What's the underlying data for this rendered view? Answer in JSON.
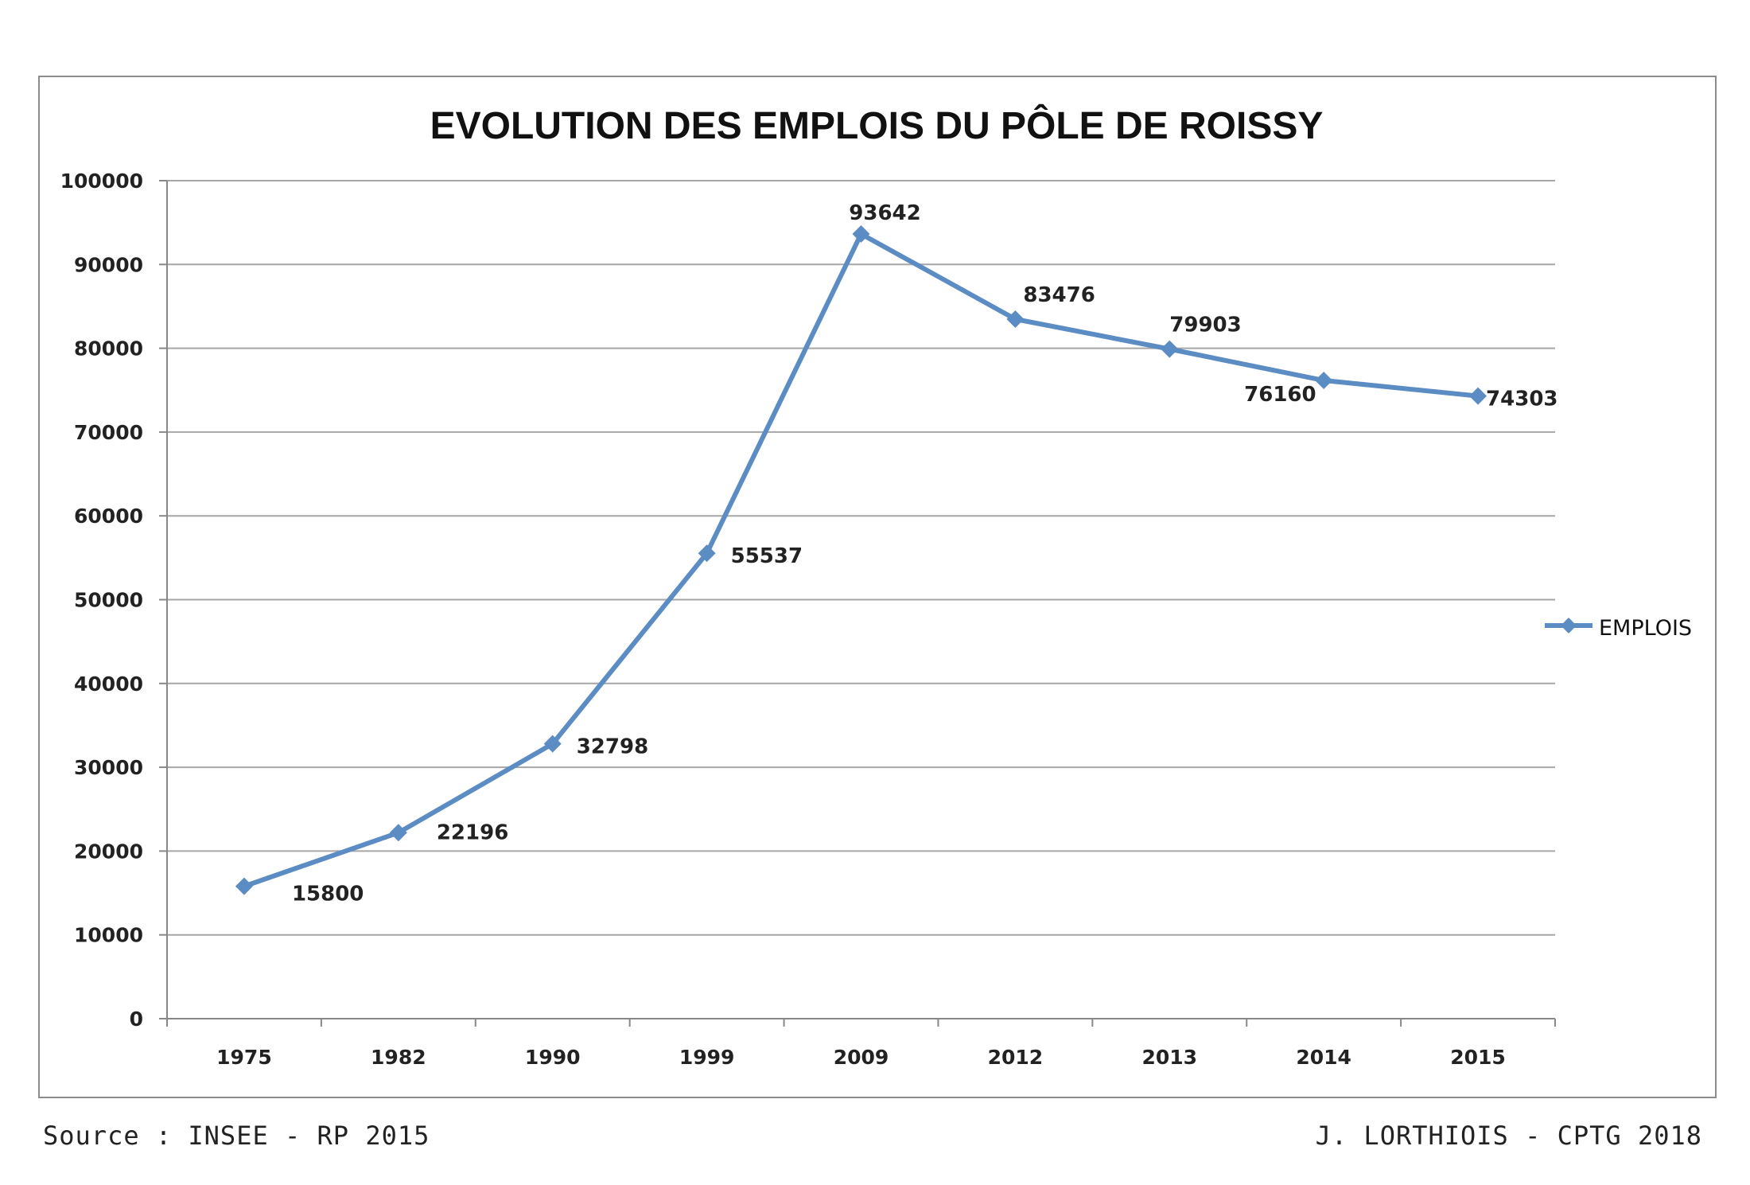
{
  "chart_data": {
    "type": "line",
    "title": "EVOLUTION DES EMPLOIS DU PÔLE DE ROISSY",
    "xlabel": "",
    "ylabel": "",
    "categories": [
      "1975",
      "1982",
      "1990",
      "1999",
      "2009",
      "2012",
      "2013",
      "2014",
      "2015"
    ],
    "series": [
      {
        "name": "EMPLOIS",
        "values": [
          15800,
          22196,
          32798,
          55537,
          93642,
          83476,
          79903,
          76160,
          74303
        ]
      }
    ],
    "ylim": [
      0,
      100000
    ],
    "yticks": [
      0,
      10000,
      20000,
      30000,
      40000,
      50000,
      60000,
      70000,
      80000,
      90000,
      100000
    ],
    "grid": true,
    "legend": "right",
    "color": "#5b8cc4",
    "grid_color": "#a6a6a6"
  },
  "footer": {
    "source": "Source : INSEE - RP 2015",
    "author": "J. LORTHIOIS - CPTG 2018"
  }
}
